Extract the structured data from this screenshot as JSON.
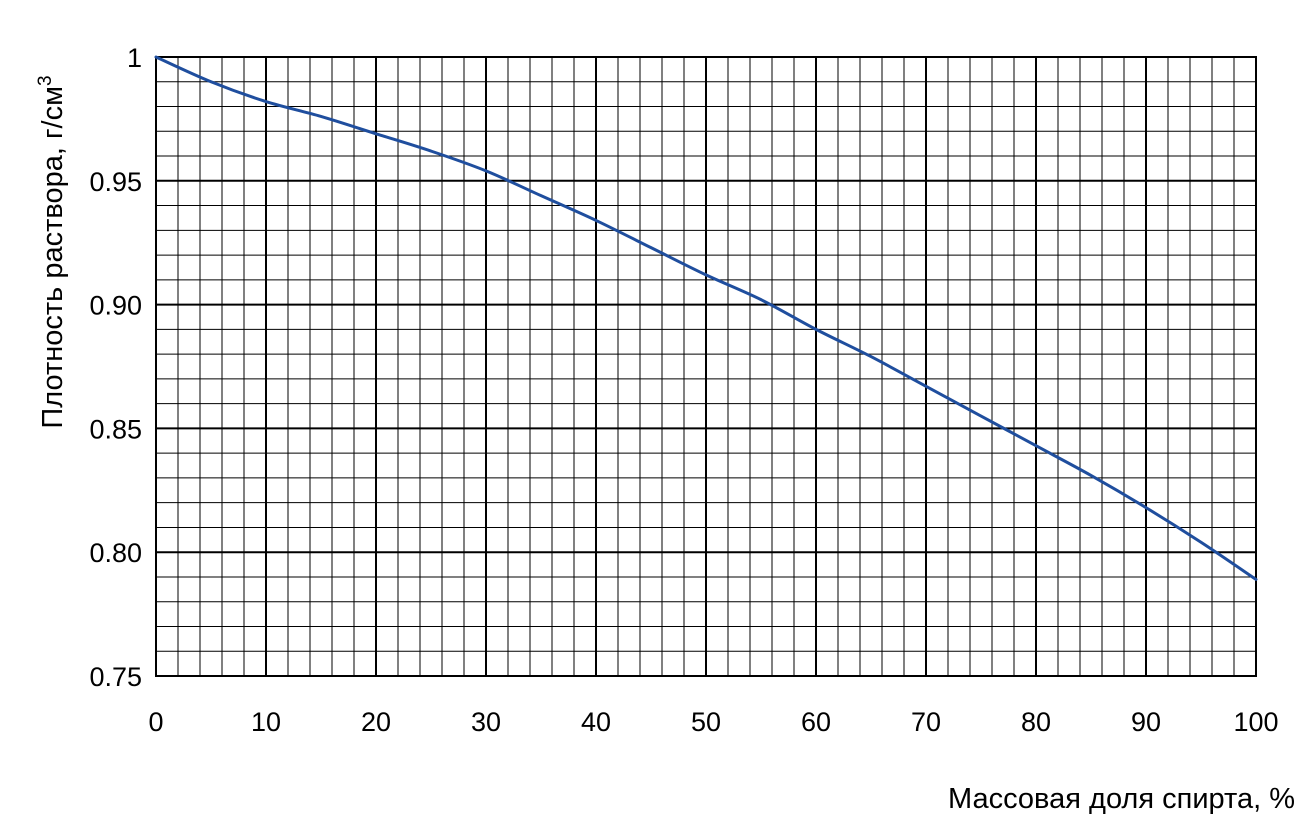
{
  "chart_data": {
    "type": "line",
    "xlabel": "Массовая доля спирта, %",
    "ylabel": "Плотность раствора, г/см",
    "ylabel_superscript": "3",
    "xlim": [
      0,
      100
    ],
    "ylim": [
      0.75,
      1.0
    ],
    "x_ticks": [
      0,
      10,
      20,
      30,
      40,
      50,
      60,
      70,
      80,
      90,
      100
    ],
    "x_tick_labels": [
      "0",
      "10",
      "20",
      "30",
      "40",
      "50",
      "60",
      "70",
      "80",
      "90",
      "100"
    ],
    "y_ticks": [
      0.75,
      0.8,
      0.85,
      0.9,
      0.95,
      1.0
    ],
    "y_tick_labels": [
      "0.75",
      "0.80",
      "0.85",
      "0.90",
      "0.95",
      "1"
    ],
    "x_minor_step": 2,
    "y_minor_step": 0.01,
    "grid": true,
    "line_color": "#1f4e9e",
    "series": [
      {
        "x": [
          0,
          5,
          10,
          15,
          20,
          25,
          30,
          35,
          40,
          45,
          50,
          55,
          60,
          65,
          70,
          75,
          80,
          85,
          90,
          95,
          100
        ],
        "values": [
          1.0,
          0.99,
          0.982,
          0.976,
          0.969,
          0.962,
          0.954,
          0.944,
          0.934,
          0.923,
          0.912,
          0.902,
          0.89,
          0.879,
          0.867,
          0.855,
          0.843,
          0.831,
          0.818,
          0.804,
          0.789
        ]
      }
    ]
  }
}
